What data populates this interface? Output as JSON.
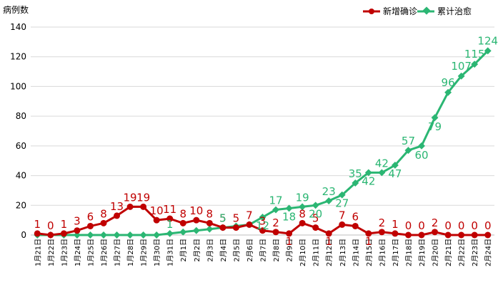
{
  "chart_data": {
    "type": "line",
    "ylabel": "病例数",
    "ylim": [
      0,
      140
    ],
    "yticks": [
      "0",
      "20",
      "40",
      "60",
      "80",
      "100",
      "120",
      "140"
    ],
    "grid": "horizontal",
    "legend_position": "top-right",
    "categories": [
      "1月21日",
      "1月22日",
      "1月23日",
      "1月24日",
      "1月25日",
      "1月26日",
      "1月27日",
      "1月28日",
      "1月29日",
      "1月30日",
      "1月31日",
      "2月1日",
      "2月2日",
      "2月3日",
      "2月4日",
      "2月5日",
      "2月6日",
      "2月7日",
      "2月8日",
      "2月9日",
      "2月10日",
      "2月11日",
      "2月12日",
      "2月13日",
      "2月14日",
      "2月15日",
      "2月16日",
      "2月17日",
      "2月18日",
      "2月19日",
      "2月20日",
      "2月21日",
      "2月22日",
      "2月23日",
      "2月24日"
    ],
    "series": [
      {
        "name": "新增确诊",
        "color": "#c00000",
        "values": [
          1,
          0,
          1,
          3,
          6,
          8,
          13,
          19,
          19,
          10,
          11,
          8,
          10,
          8,
          5,
          5,
          7,
          3,
          2,
          1,
          8,
          5,
          1,
          7,
          6,
          1,
          2,
          1,
          0,
          0,
          2,
          0,
          0,
          0,
          0
        ],
        "labels": [
          "1",
          "0",
          "1",
          "3",
          "6",
          "8",
          "13",
          "19",
          "19",
          "10",
          "11",
          "8",
          "10",
          "8",
          "5",
          "5",
          "7",
          "3",
          "2",
          "1",
          "8",
          "5",
          "1",
          "7",
          "6",
          "1",
          "2",
          "1",
          "0",
          "0",
          "2",
          "0",
          "0",
          "0",
          "0"
        ]
      },
      {
        "name": "累计治愈",
        "color": "#2bb673",
        "values": [
          0,
          0,
          0,
          0,
          0,
          0,
          0,
          0,
          0,
          0,
          1,
          2,
          3,
          4,
          5,
          6,
          7,
          12,
          17,
          18,
          19,
          20,
          23,
          27,
          35,
          42,
          42,
          47,
          57,
          60,
          79,
          96,
          107,
          115,
          124
        ],
        "labels": [
          "",
          "",
          "",
          "",
          "",
          "",
          "",
          "",
          "",
          "",
          "1",
          "",
          "",
          "",
          "5",
          "",
          "",
          "12",
          "17",
          "18",
          "19",
          "20",
          "23",
          "27",
          "35",
          "42",
          "42",
          "47",
          "57",
          "60",
          "79",
          "96",
          "107",
          "115",
          "124"
        ]
      }
    ]
  }
}
